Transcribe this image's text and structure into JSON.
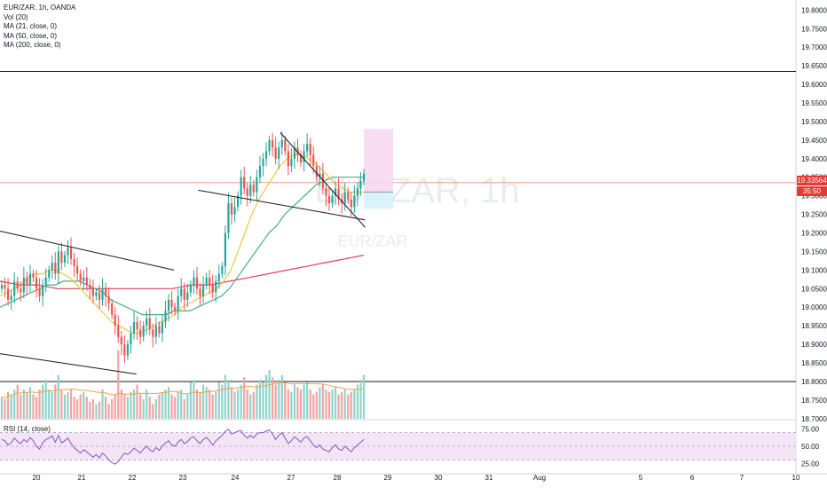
{
  "legend": {
    "symbol": "EUR/ZAR, 1h, OANDA",
    "vol": "Vol (20)",
    "ma21": "MA (21, close, 0)",
    "ma50": "MA (50, close, 0)",
    "ma200": "MA (200, close, 0)",
    "rsi": "RSI (14, close)"
  },
  "watermark": {
    "big": "EURZAR, 1h",
    "small": "EUR/ZAR"
  },
  "price_badge": {
    "price": "19.33564",
    "countdown": "35:50"
  },
  "colors": {
    "up": "#26a69a",
    "down": "#ef5350",
    "ma21": "#f5c542",
    "ma50": "#4caf80",
    "ma200": "#e0425b",
    "rsi_line": "#7e57c2",
    "rsi_band": "#f3e5f5",
    "target_zone": "#f8d7f0",
    "stop_zone": "#d6f2fa"
  },
  "chart_data": {
    "type": "candlestick",
    "symbol": "EUR/ZAR",
    "timeframe": "1h",
    "source": "OANDA",
    "x_ticks": [
      "20",
      "21",
      "22",
      "23",
      "24",
      "27",
      "28",
      "29",
      "30",
      "31",
      "Aug",
      "5",
      "6",
      "7",
      "10"
    ],
    "y_ticks": [
      "19.80000",
      "19.75000",
      "19.70000",
      "19.65000",
      "19.60000",
      "19.55000",
      "19.50000",
      "19.45000",
      "19.40000",
      "19.35000",
      "19.30000",
      "19.25000",
      "19.20000",
      "19.15000",
      "19.10000",
      "19.05000",
      "19.00000",
      "18.95000",
      "18.90000",
      "18.85000",
      "18.80000",
      "18.75000",
      "18.70000"
    ],
    "ylim": [
      18.69,
      19.82
    ],
    "rsi_ticks": [
      "75.00",
      "50.00",
      "25.00"
    ],
    "rsi_band": [
      30,
      70
    ],
    "current_price": 19.33564,
    "horizontal_levels": [
      19.635,
      18.8
    ],
    "trendlines": [
      {
        "from": {
          "bar": -15,
          "price": 19.205
        },
        "to": {
          "bar": 128,
          "price": 19.1
        }
      },
      {
        "from": {
          "bar": -15,
          "price": 18.875
        },
        "to": {
          "bar": 100,
          "price": 18.82
        }
      },
      {
        "from": {
          "bar": 146,
          "price": 19.315
        },
        "to": {
          "bar": 270,
          "price": 19.235
        }
      },
      {
        "from": {
          "bar": 207,
          "price": 19.47
        },
        "to": {
          "bar": 270,
          "price": 19.215
        }
      }
    ],
    "position": {
      "entry": 19.31,
      "target": 19.48,
      "stop": 19.265
    },
    "closes": [
      19.06,
      19.05,
      19.02,
      19.03,
      19.07,
      19.05,
      19.04,
      19.08,
      19.06,
      19.09,
      19.08,
      19.05,
      19.03,
      19.06,
      19.08,
      19.1,
      19.12,
      19.09,
      19.15,
      19.12,
      19.14,
      19.16,
      19.13,
      19.11,
      19.09,
      19.07,
      19.08,
      19.06,
      19.05,
      19.03,
      19.04,
      19.02,
      19.05,
      19.03,
      19.01,
      18.98,
      18.95,
      18.92,
      18.9,
      18.87,
      18.9,
      18.93,
      18.96,
      18.94,
      18.92,
      18.95,
      18.97,
      18.94,
      18.92,
      18.95,
      18.93,
      18.96,
      18.99,
      19.02,
      19.0,
      18.99,
      19.03,
      19.05,
      19.02,
      19.04,
      19.06,
      19.08,
      19.05,
      19.03,
      19.06,
      19.08,
      19.06,
      19.04,
      19.07,
      19.09,
      19.11,
      19.2,
      19.28,
      19.25,
      19.27,
      19.3,
      19.35,
      19.32,
      19.3,
      19.33,
      19.31,
      19.35,
      19.38,
      19.4,
      19.42,
      19.45,
      19.43,
      19.4,
      19.43,
      19.45,
      19.42,
      19.38,
      19.4,
      19.43,
      19.41,
      19.39,
      19.42,
      19.44,
      19.41,
      19.38,
      19.35,
      19.36,
      19.32,
      19.3,
      19.28,
      19.3,
      19.32,
      19.29,
      19.28,
      19.31,
      19.29,
      19.27,
      19.3,
      19.32,
      19.34,
      19.36
    ],
    "volumes": [
      0.45,
      0.4,
      0.55,
      0.5,
      0.6,
      0.7,
      0.5,
      0.6,
      0.55,
      0.65,
      0.5,
      0.45,
      0.6,
      0.7,
      0.8,
      0.6,
      0.55,
      0.7,
      0.9,
      0.6,
      0.5,
      0.55,
      0.6,
      0.45,
      0.4,
      0.5,
      0.55,
      0.45,
      0.35,
      0.4,
      0.3,
      0.35,
      0.6,
      0.45,
      0.3,
      0.4,
      0.5,
      1.4,
      0.6,
      0.5,
      0.45,
      0.55,
      0.6,
      0.7,
      0.5,
      0.4,
      0.6,
      0.45,
      0.3,
      0.4,
      0.5,
      0.55,
      0.6,
      0.65,
      0.5,
      0.45,
      0.55,
      0.6,
      0.4,
      0.5,
      0.75,
      0.8,
      0.6,
      0.55,
      0.7,
      0.65,
      0.6,
      0.5,
      0.55,
      0.75,
      0.7,
      0.9,
      0.8,
      0.65,
      0.55,
      0.6,
      0.7,
      0.85,
      0.6,
      0.5,
      0.55,
      0.7,
      0.8,
      0.75,
      0.9,
      1.0,
      0.85,
      0.7,
      0.8,
      0.9,
      0.75,
      0.6,
      0.55,
      0.7,
      0.65,
      0.6,
      0.7,
      0.75,
      0.6,
      0.5,
      0.55,
      0.65,
      0.7,
      0.6,
      0.55,
      0.6,
      0.65,
      0.5,
      0.55,
      0.6,
      0.5,
      0.55,
      0.6,
      0.7,
      0.8,
      0.9
    ],
    "ma21": [
      19.03,
      19.04,
      19.05,
      19.06,
      19.08,
      19.09,
      19.09,
      19.1,
      19.1,
      19.09,
      19.08,
      19.06,
      19.04,
      19.02,
      19.0,
      18.98,
      18.96,
      18.95,
      18.94,
      18.93,
      18.93,
      18.94,
      18.95,
      18.96,
      18.97,
      18.98,
      19.0,
      19.01,
      19.02,
      19.03,
      19.04,
      19.05,
      19.07,
      19.1,
      19.15,
      19.2,
      19.25,
      19.29,
      19.32,
      19.35,
      19.38,
      19.4,
      19.41,
      19.41,
      19.4,
      19.39,
      19.37,
      19.35,
      19.33,
      19.32,
      19.31,
      19.31,
      19.31
    ],
    "ma50": [
      19.0,
      19.01,
      19.02,
      19.03,
      19.04,
      19.05,
      19.06,
      19.06,
      19.07,
      19.07,
      19.07,
      19.06,
      19.05,
      19.04,
      19.02,
      19.01,
      19.0,
      18.99,
      18.98,
      18.98,
      18.98,
      18.98,
      18.99,
      18.99,
      18.99,
      19.0,
      19.01,
      19.02,
      19.03,
      19.05,
      19.08,
      19.11,
      19.14,
      19.17,
      19.2,
      19.22,
      19.25,
      19.27,
      19.29,
      19.31,
      19.33,
      19.34,
      19.35,
      19.35,
      19.35,
      19.35,
      19.35
    ],
    "ma200": [
      19.07,
      19.06,
      19.06,
      19.05,
      19.05,
      19.05,
      19.05,
      19.05,
      19.05,
      19.05,
      19.06,
      19.06,
      19.07,
      19.08,
      19.09,
      19.1,
      19.11,
      19.12,
      19.13,
      19.14
    ],
    "rsi": [
      60,
      58,
      52,
      55,
      62,
      57,
      54,
      60,
      56,
      63,
      58,
      50,
      46,
      55,
      60,
      62,
      65,
      56,
      66,
      55,
      58,
      62,
      54,
      48,
      44,
      40,
      45,
      42,
      38,
      34,
      38,
      33,
      40,
      36,
      30,
      26,
      24,
      28,
      34,
      40,
      38,
      42,
      47,
      44,
      40,
      46,
      50,
      45,
      42,
      48,
      44,
      50,
      55,
      58,
      52,
      50,
      56,
      60,
      54,
      57,
      62,
      64,
      58,
      54,
      60,
      63,
      58,
      52,
      58,
      62,
      66,
      72,
      75,
      68,
      70,
      72,
      73,
      66,
      62,
      66,
      62,
      68,
      70,
      70,
      72,
      74,
      68,
      60,
      66,
      70,
      62,
      54,
      58,
      64,
      60,
      56,
      62,
      64,
      58,
      52,
      48,
      52,
      46,
      44,
      42,
      48,
      52,
      46,
      44,
      50,
      46,
      42,
      48,
      52,
      56,
      60
    ]
  }
}
